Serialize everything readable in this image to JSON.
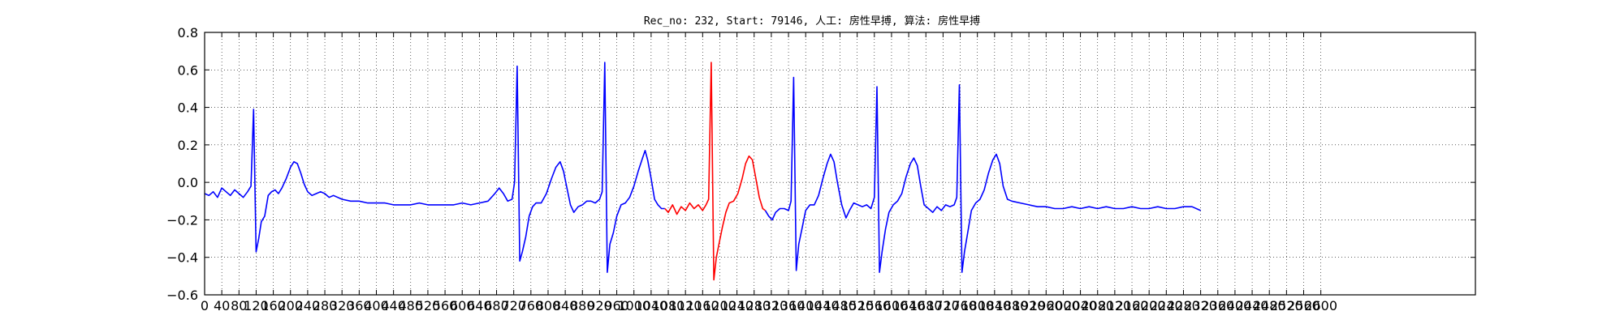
{
  "chart_data": {
    "type": "line",
    "title": "Rec_no: 232, Start: 79146, 人工: 房性早搏, 算法: 房性早搏",
    "xlabel": "",
    "ylabel": "",
    "xlim": [
      0,
      2960
    ],
    "ylim": [
      -0.6,
      0.8
    ],
    "grid": true,
    "x_ticks": [
      0,
      40,
      80,
      120,
      160,
      200,
      240,
      280,
      320,
      360,
      400,
      440,
      480,
      520,
      560,
      600,
      640,
      680,
      720,
      760,
      800,
      840,
      880,
      920,
      960,
      1000,
      1040,
      1080,
      1120,
      1160,
      1200,
      1240,
      1280,
      1320,
      1360,
      1400,
      1440,
      1480,
      1520,
      1560,
      1600,
      1640,
      1680,
      1720,
      1760,
      1800,
      1840,
      1880,
      1920,
      1960,
      2000,
      2040,
      2080,
      2120,
      2160,
      2200,
      2240,
      2280,
      2320,
      2360,
      2400,
      2440,
      2480,
      2520,
      2560,
      2600
    ],
    "y_ticks": [
      "−0.6",
      "−0.4",
      "−0.2",
      "0.0",
      "0.2",
      "0.4",
      "0.6",
      "0.8"
    ],
    "y_tick_values": [
      -0.6,
      -0.4,
      -0.2,
      0.0,
      0.2,
      0.4,
      0.6,
      0.8
    ],
    "series": [
      {
        "color": "#0000ff",
        "points": [
          [
            0,
            -0.06
          ],
          [
            10,
            -0.07
          ],
          [
            20,
            -0.05
          ],
          [
            30,
            -0.08
          ],
          [
            40,
            -0.03
          ],
          [
            50,
            -0.05
          ],
          [
            60,
            -0.07
          ],
          [
            70,
            -0.04
          ],
          [
            80,
            -0.06
          ],
          [
            90,
            -0.08
          ],
          [
            100,
            -0.05
          ],
          [
            108,
            -0.02
          ],
          [
            114,
            0.39
          ],
          [
            120,
            -0.37
          ],
          [
            126,
            -0.3
          ],
          [
            132,
            -0.21
          ],
          [
            140,
            -0.18
          ],
          [
            148,
            -0.07
          ],
          [
            156,
            -0.05
          ],
          [
            164,
            -0.04
          ],
          [
            172,
            -0.06
          ],
          [
            180,
            -0.03
          ],
          [
            190,
            0.02
          ],
          [
            200,
            0.08
          ],
          [
            208,
            0.11
          ],
          [
            216,
            0.1
          ],
          [
            224,
            0.05
          ],
          [
            232,
            -0.01
          ],
          [
            240,
            -0.05
          ],
          [
            250,
            -0.07
          ],
          [
            260,
            -0.06
          ],
          [
            270,
            -0.05
          ],
          [
            280,
            -0.06
          ],
          [
            290,
            -0.08
          ],
          [
            300,
            -0.07
          ],
          [
            320,
            -0.09
          ],
          [
            340,
            -0.1
          ],
          [
            360,
            -0.1
          ],
          [
            380,
            -0.11
          ],
          [
            400,
            -0.11
          ],
          [
            420,
            -0.11
          ],
          [
            440,
            -0.12
          ],
          [
            460,
            -0.12
          ],
          [
            480,
            -0.12
          ],
          [
            500,
            -0.11
          ],
          [
            520,
            -0.12
          ],
          [
            540,
            -0.12
          ],
          [
            560,
            -0.12
          ],
          [
            580,
            -0.12
          ],
          [
            600,
            -0.11
          ],
          [
            620,
            -0.12
          ],
          [
            640,
            -0.11
          ],
          [
            660,
            -0.1
          ],
          [
            676,
            -0.06
          ],
          [
            686,
            -0.03
          ],
          [
            696,
            -0.06
          ],
          [
            706,
            -0.1
          ],
          [
            716,
            -0.09
          ],
          [
            722,
            0.0
          ],
          [
            728,
            0.62
          ],
          [
            734,
            -0.42
          ],
          [
            740,
            -0.37
          ],
          [
            748,
            -0.29
          ],
          [
            756,
            -0.18
          ],
          [
            764,
            -0.13
          ],
          [
            772,
            -0.11
          ],
          [
            784,
            -0.11
          ],
          [
            796,
            -0.06
          ],
          [
            808,
            0.02
          ],
          [
            818,
            0.08
          ],
          [
            828,
            0.11
          ],
          [
            836,
            0.06
          ],
          [
            844,
            -0.03
          ],
          [
            852,
            -0.12
          ],
          [
            860,
            -0.16
          ],
          [
            870,
            -0.13
          ],
          [
            880,
            -0.12
          ],
          [
            890,
            -0.1
          ],
          [
            900,
            -0.1
          ],
          [
            910,
            -0.11
          ],
          [
            920,
            -0.09
          ],
          [
            926,
            -0.05
          ],
          [
            932,
            0.64
          ],
          [
            938,
            -0.48
          ],
          [
            944,
            -0.33
          ],
          [
            952,
            -0.27
          ],
          [
            960,
            -0.18
          ],
          [
            970,
            -0.12
          ],
          [
            980,
            -0.11
          ],
          [
            990,
            -0.08
          ],
          [
            1000,
            -0.02
          ],
          [
            1010,
            0.06
          ],
          [
            1020,
            0.13
          ],
          [
            1026,
            0.17
          ],
          [
            1032,
            0.12
          ],
          [
            1040,
            0.02
          ],
          [
            1048,
            -0.09
          ],
          [
            1056,
            -0.12
          ],
          [
            1064,
            -0.14
          ],
          [
            1072,
            -0.14
          ]
        ]
      },
      {
        "color": "#ff0000",
        "points": [
          [
            1072,
            -0.14
          ],
          [
            1080,
            -0.16
          ],
          [
            1090,
            -0.12
          ],
          [
            1100,
            -0.17
          ],
          [
            1110,
            -0.13
          ],
          [
            1120,
            -0.15
          ],
          [
            1130,
            -0.11
          ],
          [
            1140,
            -0.14
          ],
          [
            1150,
            -0.12
          ],
          [
            1160,
            -0.15
          ],
          [
            1168,
            -0.12
          ],
          [
            1174,
            -0.09
          ],
          [
            1180,
            0.64
          ],
          [
            1186,
            -0.52
          ],
          [
            1192,
            -0.4
          ],
          [
            1198,
            -0.33
          ],
          [
            1206,
            -0.24
          ],
          [
            1214,
            -0.16
          ],
          [
            1222,
            -0.11
          ],
          [
            1232,
            -0.1
          ],
          [
            1242,
            -0.06
          ],
          [
            1252,
            0.02
          ],
          [
            1260,
            0.1
          ],
          [
            1268,
            0.14
          ],
          [
            1276,
            0.12
          ],
          [
            1284,
            0.02
          ],
          [
            1292,
            -0.08
          ],
          [
            1300,
            -0.14
          ],
          [
            1306,
            -0.15
          ]
        ]
      },
      {
        "color": "#0000ff",
        "points": [
          [
            1306,
            -0.15
          ],
          [
            1314,
            -0.18
          ],
          [
            1322,
            -0.2
          ],
          [
            1330,
            -0.16
          ],
          [
            1340,
            -0.14
          ],
          [
            1350,
            -0.14
          ],
          [
            1360,
            -0.15
          ],
          [
            1366,
            -0.1
          ],
          [
            1372,
            0.56
          ],
          [
            1378,
            -0.47
          ],
          [
            1384,
            -0.33
          ],
          [
            1392,
            -0.24
          ],
          [
            1400,
            -0.15
          ],
          [
            1410,
            -0.12
          ],
          [
            1420,
            -0.12
          ],
          [
            1430,
            -0.07
          ],
          [
            1440,
            0.02
          ],
          [
            1450,
            0.1
          ],
          [
            1458,
            0.15
          ],
          [
            1466,
            0.11
          ],
          [
            1474,
            0.0
          ],
          [
            1484,
            -0.12
          ],
          [
            1494,
            -0.19
          ],
          [
            1502,
            -0.15
          ],
          [
            1512,
            -0.11
          ],
          [
            1522,
            -0.12
          ],
          [
            1532,
            -0.13
          ],
          [
            1542,
            -0.12
          ],
          [
            1552,
            -0.14
          ],
          [
            1560,
            -0.08
          ],
          [
            1566,
            0.51
          ],
          [
            1572,
            -0.48
          ],
          [
            1578,
            -0.37
          ],
          [
            1586,
            -0.25
          ],
          [
            1594,
            -0.16
          ],
          [
            1604,
            -0.12
          ],
          [
            1614,
            -0.1
          ],
          [
            1624,
            -0.06
          ],
          [
            1634,
            0.03
          ],
          [
            1644,
            0.1
          ],
          [
            1652,
            0.13
          ],
          [
            1660,
            0.09
          ],
          [
            1668,
            -0.02
          ],
          [
            1676,
            -0.12
          ],
          [
            1686,
            -0.14
          ],
          [
            1696,
            -0.16
          ],
          [
            1706,
            -0.13
          ],
          [
            1716,
            -0.15
          ],
          [
            1726,
            -0.12
          ],
          [
            1736,
            -0.13
          ],
          [
            1746,
            -0.12
          ],
          [
            1752,
            -0.08
          ],
          [
            1758,
            0.52
          ],
          [
            1764,
            -0.48
          ],
          [
            1770,
            -0.37
          ],
          [
            1778,
            -0.26
          ],
          [
            1786,
            -0.15
          ],
          [
            1796,
            -0.11
          ],
          [
            1806,
            -0.09
          ],
          [
            1816,
            -0.04
          ],
          [
            1826,
            0.05
          ],
          [
            1836,
            0.12
          ],
          [
            1844,
            0.15
          ],
          [
            1852,
            0.1
          ],
          [
            1860,
            -0.02
          ],
          [
            1870,
            -0.09
          ],
          [
            1880,
            -0.1
          ],
          [
            1900,
            -0.11
          ],
          [
            1920,
            -0.12
          ],
          [
            1940,
            -0.13
          ],
          [
            1960,
            -0.13
          ],
          [
            1980,
            -0.14
          ],
          [
            2000,
            -0.14
          ],
          [
            2020,
            -0.13
          ],
          [
            2040,
            -0.14
          ],
          [
            2060,
            -0.13
          ],
          [
            2080,
            -0.14
          ],
          [
            2100,
            -0.13
          ],
          [
            2120,
            -0.14
          ],
          [
            2140,
            -0.14
          ],
          [
            2160,
            -0.13
          ],
          [
            2180,
            -0.14
          ],
          [
            2200,
            -0.14
          ],
          [
            2220,
            -0.13
          ],
          [
            2240,
            -0.14
          ],
          [
            2260,
            -0.14
          ],
          [
            2280,
            -0.13
          ],
          [
            2300,
            -0.13
          ],
          [
            2320,
            -0.15
          ]
        ]
      }
    ]
  }
}
